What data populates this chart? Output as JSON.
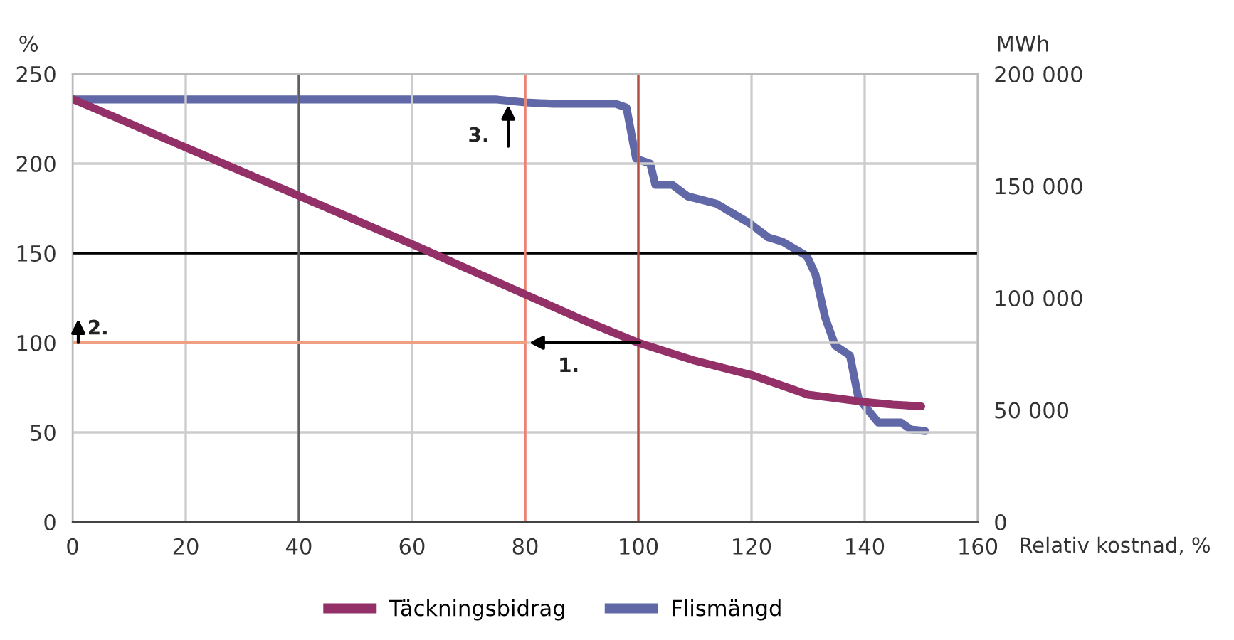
{
  "chart_data": {
    "type": "line",
    "xlabel": "Relativ kostnad, %",
    "ylabel": "%",
    "y2label": "MWh",
    "xlim": [
      0,
      160
    ],
    "xticks": [
      0,
      20,
      40,
      60,
      80,
      100,
      120,
      140,
      160
    ],
    "ylim": [
      0,
      250
    ],
    "yticks": [
      0,
      50,
      100,
      150,
      200,
      250
    ],
    "y2lim": [
      0,
      200000
    ],
    "y2ticks": [
      {
        "value": 0,
        "label": "0"
      },
      {
        "value": 50000,
        "label": "50 000"
      },
      {
        "value": 100000,
        "label": "100 000"
      },
      {
        "value": 150000,
        "label": "150 000"
      },
      {
        "value": 200000,
        "label": "200 000"
      }
    ],
    "grid": true,
    "legend": "bottom",
    "line_style": "solid",
    "series": [
      {
        "name": "Täckningsbidrag",
        "color": "#943068",
        "x": [
          0,
          20,
          40,
          60,
          80,
          90,
          100,
          110,
          120,
          130,
          140,
          145,
          150
        ],
        "values": [
          236,
          209,
          182,
          155,
          127,
          113,
          100,
          90,
          82,
          71,
          67,
          65.5,
          64.5
        ]
      },
      {
        "name": "Flismängd",
        "color": "#6068a8",
        "axis": "y2",
        "x": [
          0,
          40,
          75,
          80,
          85,
          96,
          97.9,
          99.6,
          102.1,
          103,
          106,
          108.7,
          113.7,
          119.7,
          123,
          125.5,
          129.8,
          131.3,
          133,
          134.8,
          137.4,
          138.9,
          142.4,
          146.4,
          148.2,
          150.7
        ],
        "values": [
          188600,
          188600,
          188600,
          187300,
          186700,
          186700,
          185000,
          162100,
          160000,
          150500,
          150500,
          145400,
          142200,
          133300,
          127000,
          125100,
          118700,
          110500,
          91400,
          78700,
          74300,
          55200,
          44400,
          44400,
          41300,
          40600
        ]
      },
      {
        "type": "line",
        "color": "#f0a080",
        "x": [
          0,
          80
        ],
        "values": [
          100,
          100
        ]
      }
    ],
    "ref_lines": [
      {
        "axis": "y",
        "value": 150,
        "color": "#000000"
      },
      {
        "axis": "x",
        "value": 40,
        "color": "#606060"
      },
      {
        "axis": "x",
        "value": 80,
        "color": "#f08070"
      },
      {
        "axis": "x",
        "value": 100,
        "color": "#b05040"
      }
    ],
    "annotations": [
      {
        "text": "1.",
        "x": 80,
        "y": 100
      },
      {
        "text": "2.",
        "x": 1,
        "y": 100
      },
      {
        "text": "3.",
        "x": 77,
        "y": 235
      }
    ]
  }
}
